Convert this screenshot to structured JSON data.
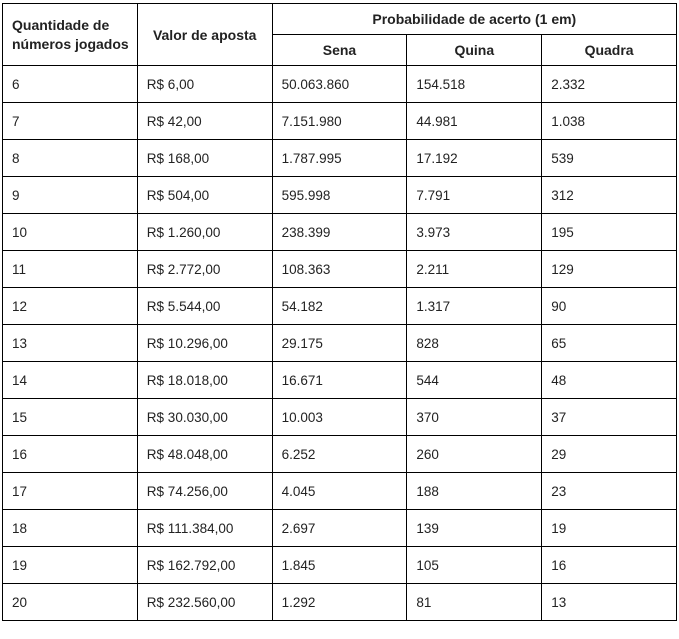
{
  "table": {
    "header": {
      "col_quantidade": "Quantidade de números jogados",
      "col_valor": "Valor de aposta",
      "group_probabilidade": "Probabilidade de acerto (1 em)",
      "sub_sena": "Sena",
      "sub_quina": "Quina",
      "sub_quadra": "Quadra"
    },
    "rows": [
      {
        "qtd": "6",
        "valor": "R$ 6,00",
        "sena": "50.063.860",
        "quina": "154.518",
        "quadra": "2.332"
      },
      {
        "qtd": "7",
        "valor": "R$ 42,00",
        "sena": "7.151.980",
        "quina": "44.981",
        "quadra": "1.038"
      },
      {
        "qtd": "8",
        "valor": "R$ 168,00",
        "sena": "1.787.995",
        "quina": "17.192",
        "quadra": "539"
      },
      {
        "qtd": "9",
        "valor": "R$ 504,00",
        "sena": "595.998",
        "quina": "7.791",
        "quadra": "312"
      },
      {
        "qtd": "10",
        "valor": "R$ 1.260,00",
        "sena": "238.399",
        "quina": "3.973",
        "quadra": "195"
      },
      {
        "qtd": "11",
        "valor": "R$ 2.772,00",
        "sena": "108.363",
        "quina": "2.211",
        "quadra": "129"
      },
      {
        "qtd": "12",
        "valor": "R$ 5.544,00",
        "sena": "54.182",
        "quina": "1.317",
        "quadra": "90"
      },
      {
        "qtd": "13",
        "valor": "R$ 10.296,00",
        "sena": "29.175",
        "quina": "828",
        "quadra": "65"
      },
      {
        "qtd": "14",
        "valor": "R$ 18.018,00",
        "sena": "16.671",
        "quina": "544",
        "quadra": "48"
      },
      {
        "qtd": "15",
        "valor": "R$ 30.030,00",
        "sena": "10.003",
        "quina": "370",
        "quadra": "37"
      },
      {
        "qtd": "16",
        "valor": "R$ 48.048,00",
        "sena": "6.252",
        "quina": "260",
        "quadra": "29"
      },
      {
        "qtd": "17",
        "valor": "R$ 74.256,00",
        "sena": "4.045",
        "quina": "188",
        "quadra": "23"
      },
      {
        "qtd": "18",
        "valor": "R$ 111.384,00",
        "sena": "2.697",
        "quina": "139",
        "quadra": "19"
      },
      {
        "qtd": "19",
        "valor": "R$ 162.792,00",
        "sena": "1.845",
        "quina": "105",
        "quadra": "16"
      },
      {
        "qtd": "20",
        "valor": "R$ 232.560,00",
        "sena": "1.292",
        "quina": "81",
        "quadra": "13"
      }
    ]
  },
  "chart_data": {
    "type": "table",
    "title": "Probabilidade de acerto (1 em)",
    "columns": [
      "Quantidade de números jogados",
      "Valor de aposta",
      "Sena",
      "Quina",
      "Quadra"
    ],
    "rows": [
      [
        "6",
        "R$ 6,00",
        "50.063.860",
        "154.518",
        "2.332"
      ],
      [
        "7",
        "R$ 42,00",
        "7.151.980",
        "44.981",
        "1.038"
      ],
      [
        "8",
        "R$ 168,00",
        "1.787.995",
        "17.192",
        "539"
      ],
      [
        "9",
        "R$ 504,00",
        "595.998",
        "7.791",
        "312"
      ],
      [
        "10",
        "R$ 1.260,00",
        "238.399",
        "3.973",
        "195"
      ],
      [
        "11",
        "R$ 2.772,00",
        "108.363",
        "2.211",
        "129"
      ],
      [
        "12",
        "R$ 5.544,00",
        "54.182",
        "1.317",
        "90"
      ],
      [
        "13",
        "R$ 10.296,00",
        "29.175",
        "828",
        "65"
      ],
      [
        "14",
        "R$ 18.018,00",
        "16.671",
        "544",
        "48"
      ],
      [
        "15",
        "R$ 30.030,00",
        "10.003",
        "370",
        "37"
      ],
      [
        "16",
        "R$ 48.048,00",
        "6.252",
        "260",
        "29"
      ],
      [
        "17",
        "R$ 74.256,00",
        "4.045",
        "188",
        "23"
      ],
      [
        "18",
        "R$ 111.384,00",
        "2.697",
        "139",
        "19"
      ],
      [
        "19",
        "R$ 162.792,00",
        "1.845",
        "105",
        "16"
      ],
      [
        "20",
        "R$ 232.560,00",
        "1.292",
        "81",
        "13"
      ]
    ],
    "colors": {
      "border": "#000000",
      "text": "#222222",
      "background": "#ffffff"
    }
  }
}
